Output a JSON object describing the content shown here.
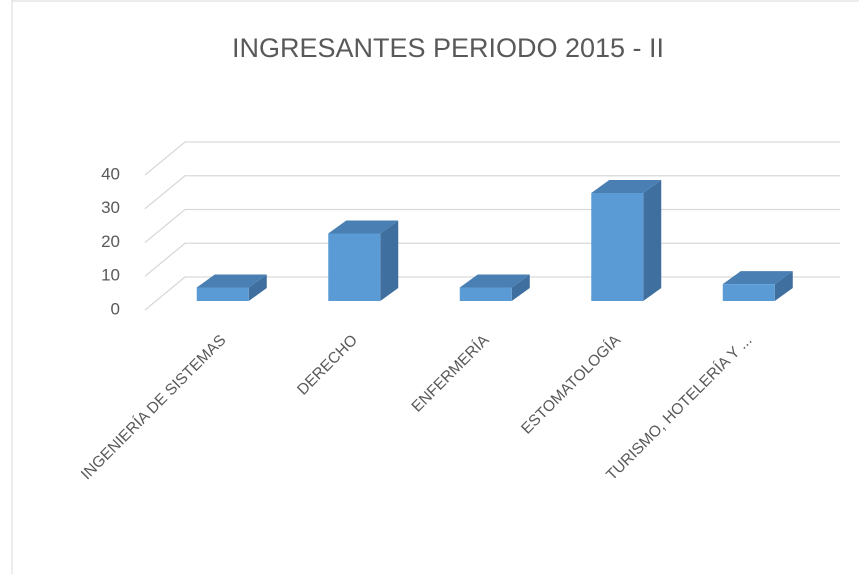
{
  "chart_data": {
    "type": "bar3d",
    "title": "INGRESANTES PERIODO 2015 - II",
    "categories": [
      "INGENIERÍA DE SISTEMAS",
      "DERECHO",
      "ENFERMERÍA",
      "ESTOMATOLOGÍA",
      "TURISMO, HOTELERÍA Y ..."
    ],
    "values": [
      4,
      20,
      4,
      32,
      5
    ],
    "color": "#5b9bd5",
    "ylim": [
      0,
      40
    ],
    "yticks": [
      0,
      10,
      20,
      30,
      40
    ],
    "grid": true
  }
}
